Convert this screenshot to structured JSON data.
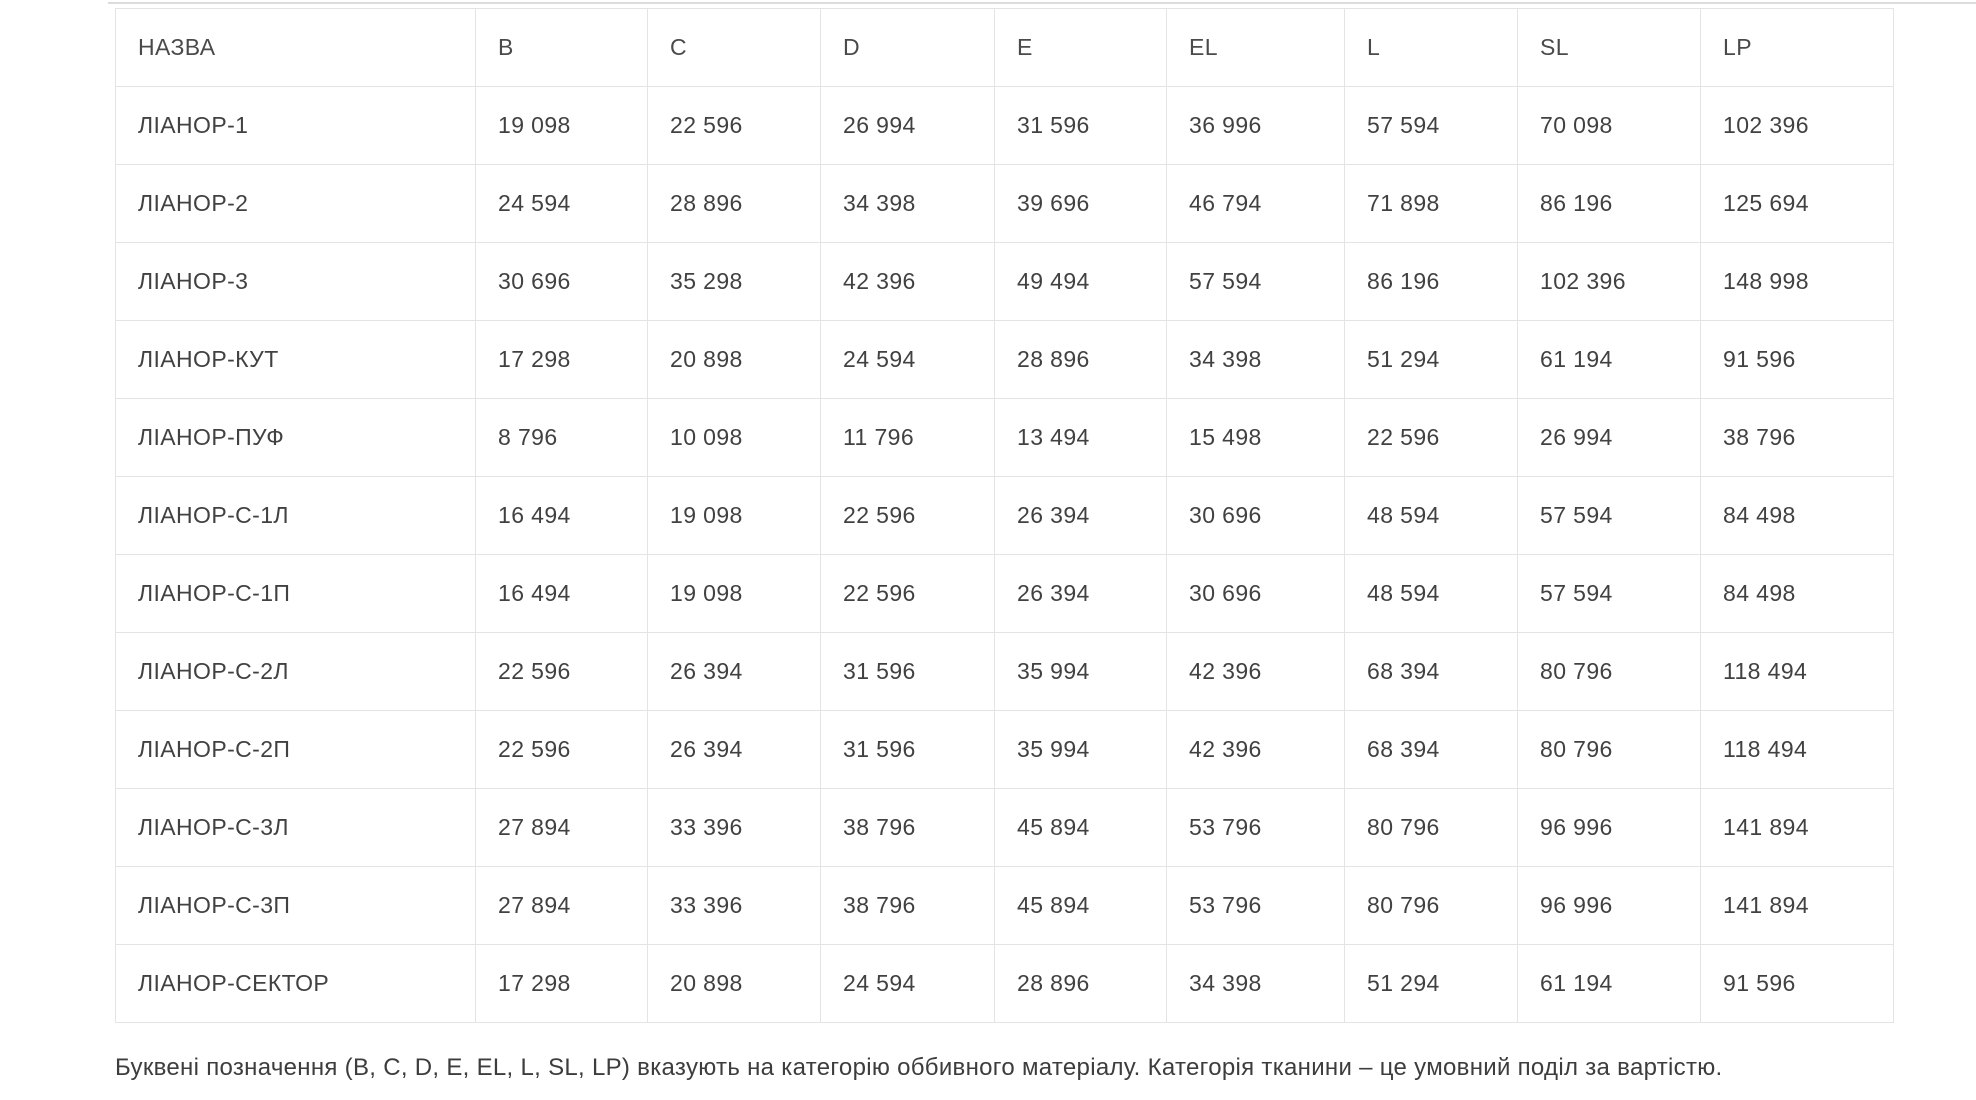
{
  "table": {
    "columns": [
      "НАЗВА",
      "B",
      "C",
      "D",
      "E",
      "EL",
      "L",
      "SL",
      "LP"
    ],
    "rows": [
      {
        "name": "ЛІАНОР-1",
        "values": [
          "19 098",
          "22 596",
          "26 994",
          "31 596",
          "36 996",
          "57 594",
          "70 098",
          "102 396"
        ]
      },
      {
        "name": "ЛІАНОР-2",
        "values": [
          "24 594",
          "28 896",
          "34 398",
          "39 696",
          "46 794",
          "71 898",
          "86 196",
          "125 694"
        ]
      },
      {
        "name": "ЛІАНОР-3",
        "values": [
          "30 696",
          "35 298",
          "42 396",
          "49 494",
          "57 594",
          "86 196",
          "102 396",
          "148 998"
        ]
      },
      {
        "name": "ЛІАНОР-КУТ",
        "values": [
          "17 298",
          "20 898",
          "24 594",
          "28 896",
          "34 398",
          "51 294",
          "61 194",
          "91 596"
        ]
      },
      {
        "name": "ЛІАНОР-ПУФ",
        "values": [
          "8 796",
          "10 098",
          "11 796",
          "13 494",
          "15 498",
          "22 596",
          "26 994",
          "38 796"
        ]
      },
      {
        "name": "ЛІАНОР-С-1Л",
        "values": [
          "16 494",
          "19 098",
          "22 596",
          "26 394",
          "30 696",
          "48 594",
          "57 594",
          "84 498"
        ]
      },
      {
        "name": "ЛІАНОР-С-1П",
        "values": [
          "16 494",
          "19 098",
          "22 596",
          "26 394",
          "30 696",
          "48 594",
          "57 594",
          "84 498"
        ]
      },
      {
        "name": "ЛІАНОР-С-2Л",
        "values": [
          "22 596",
          "26 394",
          "31 596",
          "35 994",
          "42 396",
          "68 394",
          "80 796",
          "118 494"
        ]
      },
      {
        "name": "ЛІАНОР-С-2П",
        "values": [
          "22 596",
          "26 394",
          "31 596",
          "35 994",
          "42 396",
          "68 394",
          "80 796",
          "118 494"
        ]
      },
      {
        "name": "ЛІАНОР-С-3Л",
        "values": [
          "27 894",
          "33 396",
          "38 796",
          "45 894",
          "53 796",
          "80 796",
          "96 996",
          "141 894"
        ]
      },
      {
        "name": "ЛІАНОР-С-3П",
        "values": [
          "27 894",
          "33 396",
          "38 796",
          "45 894",
          "53 796",
          "80 796",
          "96 996",
          "141 894"
        ]
      },
      {
        "name": "ЛІАНОР-СЕКТОР",
        "values": [
          "17 298",
          "20 898",
          "24 594",
          "28 896",
          "34 398",
          "51 294",
          "61 194",
          "91 596"
        ]
      }
    ]
  },
  "footnote": "Буквені позначення (B, C, D, E, EL, L, SL, LP) вказують на категорію оббивного матеріалу. Категорія тканини – це умовний поділ за вартістю.",
  "colors": {
    "background": "#ffffff",
    "table_border": "#e4e4e4",
    "text": "#414141",
    "top_divider": "#dcdcdc"
  }
}
